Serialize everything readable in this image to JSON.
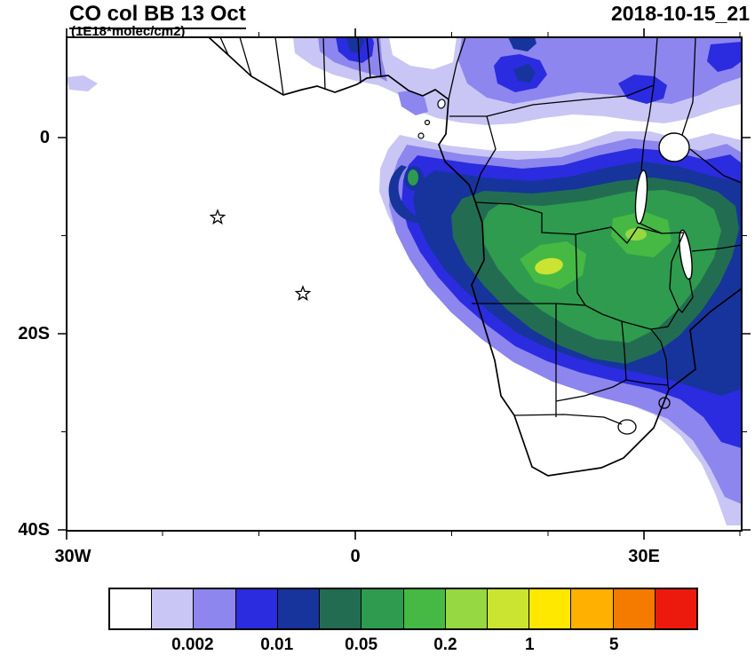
{
  "header": {
    "title": "CO col BB 13 Oct",
    "subtitle": "(1E18*molec/cm2)",
    "datestamp": "2018-10-15_21"
  },
  "axes": {
    "y_ticks": [
      "0",
      "20S",
      "40S"
    ],
    "x_ticks": [
      "30W",
      "0",
      "30E"
    ]
  },
  "colorbar": {
    "colors": [
      "#FFFFFF",
      "#C9C6F5",
      "#8D86EE",
      "#2B2BE0",
      "#16349C",
      "#226D52",
      "#2E9B4F",
      "#45B944",
      "#95D841",
      "#CBE431",
      "#FFE800",
      "#FFB000",
      "#F57A00",
      "#EB1A0C"
    ],
    "tick_labels": [
      "0.002",
      "0.01",
      "0.05",
      "0.2",
      "1",
      "5"
    ],
    "tick_positions": [
      2,
      4,
      6,
      8,
      10,
      12
    ]
  },
  "markers": [
    {
      "label": "star",
      "x": 245,
      "y": 245,
      "lon_approx": -14.3,
      "lat_approx": -8.2
    },
    {
      "label": "star",
      "x": 341,
      "y": 331,
      "lon_approx": -5.4,
      "lat_approx": -16.1
    }
  ],
  "chart_data": {
    "type": "heatmap",
    "title": "CO col BB 13 Oct",
    "units": "1E18*molec/cm2",
    "timestamp_label": "2018-10-15_21",
    "x_axis": {
      "tick_labels": [
        "30W",
        "0",
        "30E"
      ],
      "range_deg_lon": [
        -30,
        40
      ]
    },
    "y_axis": {
      "tick_labels": [
        "0",
        "20S",
        "40S"
      ],
      "range_deg_lat": [
        10,
        -40
      ]
    },
    "contour_levels": [
      0.001,
      0.002,
      0.005,
      0.01,
      0.02,
      0.05,
      0.1,
      0.2,
      0.5,
      1,
      2,
      5,
      10
    ],
    "legend_labeled_levels": [
      "0.002",
      "0.01",
      "0.05",
      "0.2",
      "1",
      "5"
    ],
    "palette": [
      "#FFFFFF",
      "#C9C6F5",
      "#8D86EE",
      "#2B2BE0",
      "#16349C",
      "#226D52",
      "#2E9B4F",
      "#45B944",
      "#95D841",
      "#CBE431",
      "#FFE800",
      "#FFB000",
      "#F57A00",
      "#EB1A0C"
    ],
    "grid": false,
    "legend_position": "bottom",
    "regions_approx_values": [
      {
        "region": "Angola/Zambia core plume (~15-25E, 10-18S)",
        "value_1e18": "0.5-2 (yellow-green max ~20E,14S)"
      },
      {
        "region": "Central/southern Africa broad plume (10-40E, 2-25S)",
        "value_1e18": "0.1-0.5"
      },
      {
        "region": "Atlantic westward outflow with cyclonic hook near 5E, 5-8S",
        "value_1e18": "0.02-0.2"
      },
      {
        "region": "Northern band along 0-8N from 10W to 40E",
        "value_1e18": "0.002-0.05"
      },
      {
        "region": "Southeast coast / Mozambique channel fringe (28-40E, 20-35S)",
        "value_1e18": "0.002-0.1"
      },
      {
        "region": "South Atlantic open ocean west of 0E",
        "value_1e18": "< 0.001 (white)"
      }
    ],
    "station_markers": [
      "open star ~14W, 8S (Ascension-like)",
      "open star ~5W, 16S (St Helena-like)"
    ]
  }
}
